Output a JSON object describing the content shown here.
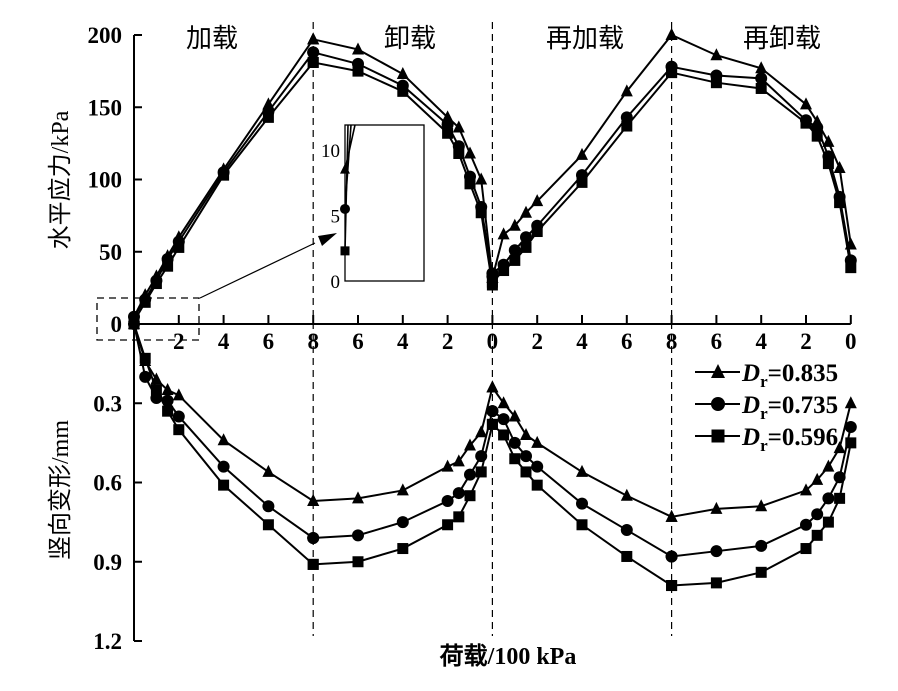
{
  "chart_data": {
    "type": "line",
    "xlabel": "荷载/100 kPa",
    "phases": [
      "加载",
      "卸载",
      "再加载",
      "再卸载"
    ],
    "x_ticks": [
      "2",
      "4",
      "6",
      "8",
      "6",
      "4",
      "2",
      "0",
      "2",
      "4",
      "6",
      "8",
      "6",
      "4",
      "2",
      "0"
    ],
    "top": {
      "ylabel": "水平应力/kPa",
      "ylim": [
        0,
        200
      ],
      "y_ticks": [
        "0",
        "50",
        "100",
        "150",
        "200"
      ]
    },
    "bottom": {
      "ylabel": "竖向变形/mm",
      "ylim": [
        0,
        1.2
      ],
      "y_ticks": [
        "0.3",
        "0.6",
        "0.9",
        "1.2"
      ]
    },
    "loads": {
      "loading": [
        0,
        0.5,
        1,
        1.5,
        2,
        4,
        6,
        8
      ],
      "unloading": [
        8,
        6,
        4,
        2,
        1.5,
        1,
        0.5,
        0
      ]
    },
    "series": [
      {
        "name": "Dr=0.835",
        "label_main": "D",
        "label_sub": "r",
        "label_value": "=0.835",
        "marker": "triangle",
        "stress": [
          [
            5,
            20,
            33,
            47,
            60,
            107,
            152,
            197
          ],
          [
            197,
            190,
            173,
            143,
            136,
            118,
            100,
            32
          ],
          [
            32,
            62,
            68,
            77,
            85,
            117,
            161,
            200
          ],
          [
            200,
            186,
            177,
            152,
            140,
            126,
            108,
            55
          ]
        ],
        "deform": [
          [
            0,
            0.14,
            0.21,
            0.25,
            0.27,
            0.44,
            0.56,
            0.67
          ],
          [
            0.67,
            0.66,
            0.63,
            0.54,
            0.52,
            0.46,
            0.41,
            0.24
          ],
          [
            0.24,
            0.3,
            0.35,
            0.42,
            0.45,
            0.56,
            0.65,
            0.73
          ],
          [
            0.73,
            0.7,
            0.69,
            0.63,
            0.59,
            0.54,
            0.47,
            0.3
          ]
        ]
      },
      {
        "name": "Dr=0.735",
        "label_main": "D",
        "label_sub": "r",
        "label_value": "=0.735",
        "marker": "circle",
        "stress": [
          [
            5,
            17,
            30,
            45,
            57,
            105,
            147,
            188
          ],
          [
            188,
            180,
            165,
            138,
            123,
            102,
            81,
            33
          ],
          [
            35,
            41,
            51,
            60,
            68,
            103,
            143,
            178
          ],
          [
            178,
            172,
            170,
            141,
            136,
            116,
            88,
            44
          ]
        ],
        "deform": [
          [
            0,
            0.2,
            0.28,
            0.29,
            0.35,
            0.54,
            0.69,
            0.81
          ],
          [
            0.81,
            0.8,
            0.75,
            0.67,
            0.64,
            0.57,
            0.5,
            0.33
          ],
          [
            0.33,
            0.36,
            0.45,
            0.5,
            0.54,
            0.68,
            0.78,
            0.88
          ],
          [
            0.88,
            0.86,
            0.84,
            0.76,
            0.72,
            0.66,
            0.58,
            0.39
          ]
        ]
      },
      {
        "name": "Dr=0.596",
        "label_main": "D",
        "label_sub": "r",
        "label_value": "=0.596",
        "marker": "square",
        "stress": [
          [
            2,
            15,
            28,
            40,
            53,
            103,
            143,
            181
          ],
          [
            181,
            175,
            161,
            132,
            118,
            97,
            77,
            27
          ],
          [
            29,
            37,
            44,
            53,
            64,
            98,
            137,
            174
          ],
          [
            174,
            167,
            163,
            139,
            130,
            111,
            84,
            39
          ]
        ],
        "deform": [
          [
            0,
            0.13,
            0.25,
            0.33,
            0.4,
            0.61,
            0.76,
            0.91
          ],
          [
            0.91,
            0.9,
            0.85,
            0.76,
            0.73,
            0.65,
            0.56,
            0.38
          ],
          [
            0.38,
            0.42,
            0.51,
            0.56,
            0.61,
            0.76,
            0.88,
            0.99
          ],
          [
            0.99,
            0.98,
            0.94,
            0.85,
            0.8,
            0.75,
            0.66,
            0.45
          ]
        ]
      }
    ],
    "inset": {
      "y_ticks": [
        "0",
        "5",
        "10"
      ],
      "ylim": [
        0,
        12
      ],
      "values": [
        8.5,
        5.5,
        2.3
      ]
    }
  }
}
